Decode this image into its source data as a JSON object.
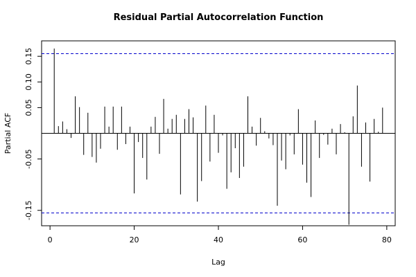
{
  "chart_data": {
    "type": "bar",
    "style": "vertical-lines",
    "title": "Residual Partial Autocorrelation Function",
    "xlabel": "Lag",
    "ylabel": "Partial ACF",
    "xlim": [
      -2,
      82
    ],
    "ylim": [
      -0.18,
      0.18
    ],
    "x_ticks": [
      0,
      20,
      40,
      60,
      80
    ],
    "y_ticks": [
      -0.15,
      -0.05,
      0.05,
      0.1,
      0.15
    ],
    "y_tick_labels": [
      "-0.15",
      "-0.05",
      "0.05",
      "0.10",
      "0.15"
    ],
    "zero_line": 0,
    "confidence_bounds": [
      0.155,
      -0.155
    ],
    "confidence_line_color": "#0000cc",
    "grid": false,
    "lags": [
      1,
      2,
      3,
      4,
      5,
      6,
      7,
      8,
      9,
      10,
      11,
      12,
      13,
      14,
      15,
      16,
      17,
      18,
      19,
      20,
      21,
      22,
      23,
      24,
      25,
      26,
      27,
      28,
      29,
      30,
      31,
      32,
      33,
      34,
      35,
      36,
      37,
      38,
      39,
      40,
      41,
      42,
      43,
      44,
      45,
      46,
      47,
      48,
      49,
      50,
      51,
      52,
      53,
      54,
      55,
      56,
      57,
      58,
      59,
      60,
      61,
      62,
      63,
      64,
      65,
      66,
      67,
      68,
      69,
      70,
      71,
      72,
      73,
      74,
      75,
      76,
      77,
      78,
      79
    ],
    "values": [
      0.165,
      0.014,
      0.023,
      0.008,
      -0.009,
      0.072,
      0.051,
      -0.042,
      0.04,
      -0.046,
      -0.057,
      -0.03,
      0.052,
      0.013,
      0.052,
      -0.032,
      0.052,
      -0.021,
      0.013,
      -0.117,
      -0.017,
      -0.048,
      -0.09,
      0.013,
      0.032,
      -0.04,
      0.067,
      0.009,
      0.028,
      0.036,
      -0.119,
      0.028,
      0.047,
      0.031,
      -0.133,
      -0.093,
      0.054,
      -0.055,
      0.036,
      -0.038,
      -0.004,
      -0.108,
      -0.076,
      -0.029,
      -0.087,
      -0.065,
      0.072,
      0.013,
      -0.024,
      0.03,
      0.004,
      -0.01,
      -0.023,
      -0.141,
      -0.053,
      -0.07,
      -0.004,
      -0.041,
      0.047,
      -0.061,
      -0.096,
      -0.124,
      0.025,
      -0.048,
      -0.003,
      -0.022,
      0.009,
      -0.041,
      0.018,
      0.002,
      -0.178,
      0.033,
      0.093,
      -0.065,
      0.021,
      -0.094,
      0.028,
      0.003,
      0.05
    ]
  }
}
